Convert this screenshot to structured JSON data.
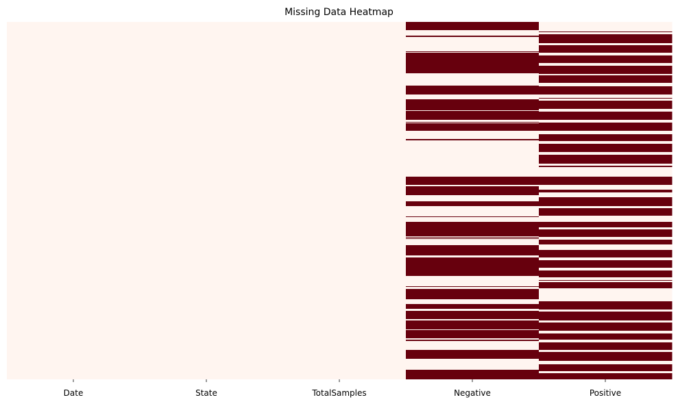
{
  "chart_data": {
    "type": "heatmap",
    "title": "Missing Data Heatmap",
    "xlabel": "",
    "ylabel": "",
    "columns": [
      "Date",
      "State",
      "TotalSamples",
      "Negative",
      "Positive"
    ],
    "row_count": 522,
    "legend": "none",
    "grid": false,
    "colors": {
      "present": "#fff5f0",
      "missing": "#67000d"
    },
    "missing_intervals": [
      [],
      [],
      [],
      [
        [
          0,
          12
        ],
        [
          20,
          22
        ],
        [
          43,
          44
        ],
        [
          45,
          75
        ],
        [
          93,
          106
        ],
        [
          113,
          129
        ],
        [
          130,
          143
        ],
        [
          146,
          147
        ],
        [
          148,
          159
        ],
        [
          171,
          173
        ],
        [
          226,
          238
        ],
        [
          240,
          253
        ],
        [
          262,
          269
        ],
        [
          284,
          285
        ],
        [
          292,
          313
        ],
        [
          314,
          315
        ],
        [
          316,
          317
        ],
        [
          326,
          341
        ],
        [
          344,
          371
        ],
        [
          386,
          387
        ],
        [
          390,
          405
        ],
        [
          412,
          419
        ],
        [
          422,
          434
        ],
        [
          436,
          449
        ],
        [
          450,
          462
        ],
        [
          464,
          466
        ],
        [
          479,
          492
        ],
        [
          508,
          522
        ]
      ],
      [
        [
          14,
          15
        ],
        [
          18,
          31
        ],
        [
          34,
          45
        ],
        [
          49,
          60
        ],
        [
          64,
          76
        ],
        [
          78,
          89
        ],
        [
          94,
          106
        ],
        [
          111,
          112
        ],
        [
          115,
          127
        ],
        [
          131,
          143
        ],
        [
          147,
          159
        ],
        [
          164,
          174
        ],
        [
          178,
          190
        ],
        [
          194,
          207
        ],
        [
          210,
          212
        ],
        [
          226,
          238
        ],
        [
          245,
          249
        ],
        [
          256,
          269
        ],
        [
          272,
          283
        ],
        [
          292,
          300
        ],
        [
          303,
          314
        ],
        [
          318,
          325
        ],
        [
          333,
          344
        ],
        [
          348,
          359
        ],
        [
          363,
          373
        ],
        [
          377,
          378
        ],
        [
          380,
          389
        ],
        [
          408,
          420
        ],
        [
          423,
          436
        ],
        [
          439,
          451
        ],
        [
          455,
          464
        ],
        [
          468,
          479
        ],
        [
          482,
          495
        ],
        [
          500,
          510
        ],
        [
          513,
          522
        ]
      ]
    ]
  }
}
